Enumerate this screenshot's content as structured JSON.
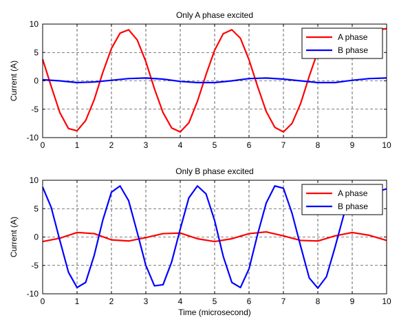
{
  "chart_data": [
    {
      "type": "line",
      "title": "Only A phase excited",
      "xlabel": "",
      "ylabel": "Current (A)",
      "xlim": [
        0,
        10
      ],
      "ylim": [
        -10,
        10
      ],
      "xticks": [
        "0",
        "1",
        "2",
        "3",
        "4",
        "5",
        "6",
        "7",
        "8",
        "9",
        "10"
      ],
      "yticks": [
        "10",
        "5",
        "0",
        "-5",
        "-10"
      ],
      "grid": "on (dashed)",
      "legend": "top-right",
      "series": [
        {
          "name": "A phase",
          "color": "#ff0000",
          "x": [
            0,
            0.25,
            0.5,
            0.75,
            1.0,
            1.25,
            1.5,
            1.75,
            2.0,
            2.25,
            2.5,
            2.75,
            3.0,
            3.25,
            3.5,
            3.75,
            4.0,
            4.25,
            4.5,
            4.75,
            5.0,
            5.25,
            5.5,
            5.75,
            6.0,
            6.25,
            6.5,
            6.75,
            7.0,
            7.25,
            7.5,
            7.75,
            8.0,
            8.25,
            8.5,
            8.75,
            9.0,
            9.25,
            9.5,
            9.75,
            10.0
          ],
          "values": [
            3.8,
            -1.0,
            -5.6,
            -8.4,
            -8.8,
            -7.0,
            -3.3,
            1.5,
            5.7,
            8.4,
            9.0,
            7.2,
            3.4,
            -1.4,
            -5.6,
            -8.3,
            -9.0,
            -7.4,
            -3.6,
            1.1,
            5.4,
            8.3,
            9.0,
            7.5,
            3.7,
            -1.0,
            -5.4,
            -8.2,
            -9.0,
            -7.5,
            -4.0,
            0.8,
            5.2,
            8.0,
            8.9,
            9.0,
            9.0,
            8.9,
            9.0,
            9.0,
            9.2
          ]
        },
        {
          "name": "B phase",
          "color": "#0000ff",
          "x": [
            0,
            0.5,
            1.0,
            1.5,
            2.0,
            2.5,
            3.0,
            3.5,
            4.0,
            4.5,
            5.0,
            5.5,
            6.0,
            6.5,
            7.0,
            7.5,
            8.0,
            8.5,
            9.0,
            9.5,
            10.0
          ],
          "values": [
            0.2,
            0.0,
            -0.3,
            -0.2,
            0.1,
            0.4,
            0.5,
            0.3,
            -0.1,
            -0.3,
            -0.3,
            0.0,
            0.4,
            0.5,
            0.3,
            0.0,
            -0.3,
            -0.3,
            0.1,
            0.4,
            0.5
          ]
        }
      ]
    },
    {
      "type": "line",
      "title": "Only B phase excited",
      "xlabel": "Time (microsecond)",
      "ylabel": "Current (A)",
      "xlim": [
        0,
        10
      ],
      "ylim": [
        -10,
        10
      ],
      "xticks": [
        "0",
        "1",
        "2",
        "3",
        "4",
        "5",
        "6",
        "7",
        "8",
        "9",
        "10"
      ],
      "yticks": [
        "10",
        "5",
        "0",
        "-5",
        "-10"
      ],
      "grid": "on (dashed)",
      "legend": "top-right",
      "series": [
        {
          "name": "A phase",
          "color": "#ff0000",
          "x": [
            0,
            0.5,
            1.0,
            1.5,
            2.0,
            2.5,
            3.0,
            3.5,
            4.0,
            4.5,
            5.0,
            5.5,
            6.0,
            6.5,
            7.0,
            7.5,
            8.0,
            8.5,
            9.0,
            9.5,
            10.0
          ],
          "values": [
            -0.8,
            -0.2,
            0.8,
            0.6,
            -0.5,
            -0.7,
            -0.1,
            0.6,
            0.7,
            -0.3,
            -0.8,
            -0.3,
            0.6,
            0.9,
            0.2,
            -0.6,
            -0.7,
            0.2,
            0.8,
            0.3,
            -0.6
          ]
        },
        {
          "name": "B phase",
          "color": "#0000ff",
          "x": [
            0,
            0.25,
            0.5,
            0.75,
            1.0,
            1.25,
            1.5,
            1.75,
            2.0,
            2.25,
            2.5,
            2.75,
            3.0,
            3.25,
            3.5,
            3.75,
            4.0,
            4.25,
            4.5,
            4.75,
            5.0,
            5.25,
            5.5,
            5.75,
            6.0,
            6.25,
            6.5,
            6.75,
            7.0,
            7.25,
            7.5,
            7.75,
            8.0,
            8.25,
            8.5,
            8.75,
            9.0,
            9.25,
            9.5,
            9.75,
            10.0
          ],
          "values": [
            8.8,
            5.2,
            -0.6,
            -6.2,
            -8.9,
            -8.0,
            -3.2,
            3.0,
            7.9,
            9.0,
            6.4,
            0.8,
            -5.0,
            -8.6,
            -8.4,
            -4.4,
            1.4,
            6.9,
            9.0,
            7.6,
            2.9,
            -3.4,
            -8.0,
            -8.9,
            -5.6,
            0.5,
            6.0,
            9.0,
            8.6,
            4.2,
            -1.6,
            -7.2,
            -9.0,
            -7.0,
            -1.8,
            3.8,
            7.0,
            8.8,
            8.9,
            8.0,
            8.5
          ]
        }
      ]
    }
  ]
}
